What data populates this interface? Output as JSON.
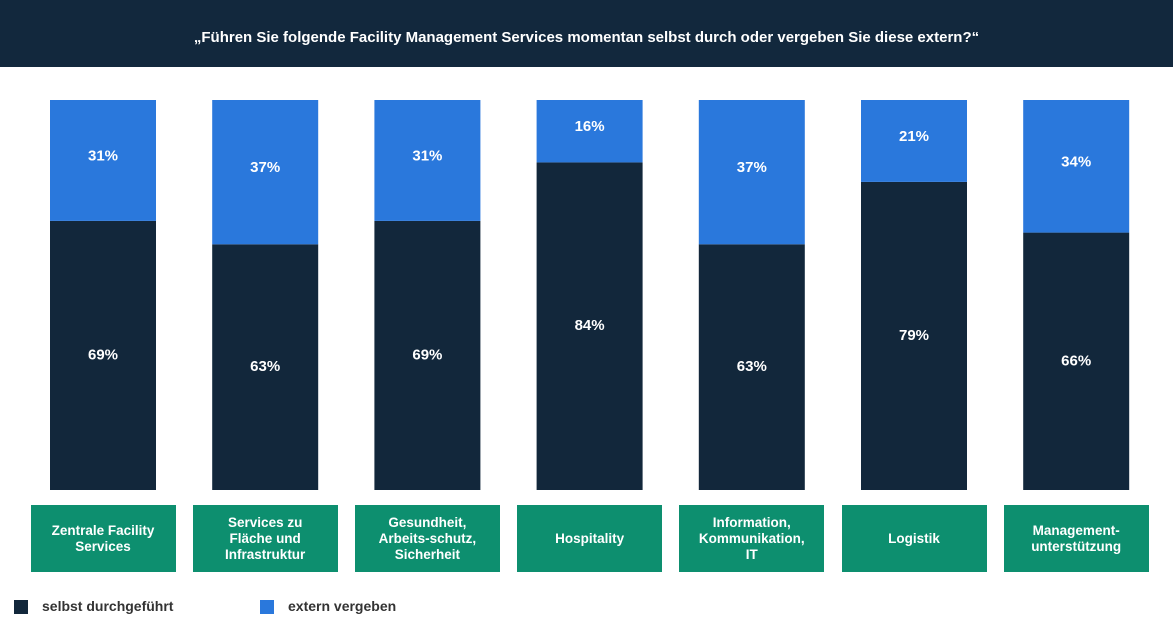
{
  "chart_data": {
    "type": "bar",
    "stacked": true,
    "title": "„Führen Sie folgende Facility Management Services momentan selbst durch oder vergeben Sie diese extern?“",
    "categories": [
      "Zentrale Facility\nServices",
      "Services zu\nFläche und\nInfrastruktur",
      "Gesundheit,\nArbeits-schutz,\nSicherheit",
      "Hospitality",
      "Information,\nKommunikation,\nIT",
      "Logistik",
      "Management-\nunterstützung"
    ],
    "series": [
      {
        "name": "selbst durchgeführt",
        "color": "#12273b",
        "values": [
          69,
          63,
          69,
          84,
          63,
          79,
          66
        ],
        "value_labels": [
          "69%",
          "63%",
          "69%",
          "84%",
          "63%",
          "79%",
          "66%"
        ]
      },
      {
        "name": "extern vergeben",
        "color": "#2a78dc",
        "values": [
          31,
          37,
          31,
          16,
          37,
          21,
          34
        ],
        "value_labels": [
          "31%",
          "37%",
          "31%",
          "16%",
          "37%",
          "21%",
          "34%"
        ]
      }
    ],
    "category_color": "#0d8f6f"
  }
}
